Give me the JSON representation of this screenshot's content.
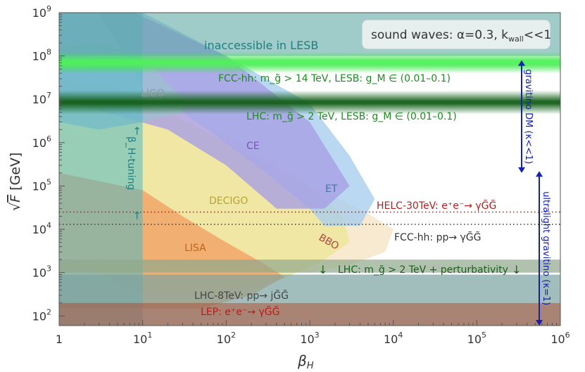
{
  "chart_data": {
    "type": "area",
    "xlabel": "β_H",
    "ylabel": "√F [GeV]",
    "x_scale": "log",
    "y_scale": "log",
    "xlim": [
      1,
      1000000
    ],
    "ylim": [
      60,
      1000000000
    ],
    "x_ticks": [
      {
        "value": 1,
        "label": "1"
      },
      {
        "value": 10,
        "base": "10",
        "exp": "1"
      },
      {
        "value": 100,
        "base": "10",
        "exp": "2"
      },
      {
        "value": 1000,
        "base": "10",
        "exp": "3"
      },
      {
        "value": 10000,
        "base": "10",
        "exp": "4"
      },
      {
        "value": 100000,
        "base": "10",
        "exp": "5"
      },
      {
        "value": 1000000,
        "base": "10",
        "exp": "6"
      }
    ],
    "y_ticks": [
      {
        "value": 100,
        "base": "10",
        "exp": "2"
      },
      {
        "value": 1000,
        "base": "10",
        "exp": "3"
      },
      {
        "value": 10000,
        "base": "10",
        "exp": "4"
      },
      {
        "value": 100000,
        "base": "10",
        "exp": "5"
      },
      {
        "value": 1000000,
        "base": "10",
        "exp": "6"
      },
      {
        "value": 10000000,
        "base": "10",
        "exp": "7"
      },
      {
        "value": 100000000,
        "base": "10",
        "exp": "8"
      },
      {
        "value": 1000000000,
        "base": "10",
        "exp": "9"
      }
    ],
    "legend_box": {
      "text": "sound waves: α=0.3, k",
      "sub": "wall",
      "tail": "<<1",
      "placement": "top-right"
    },
    "regions": [
      {
        "name": "inaccessible-in-lesb",
        "label": "inaccessible in LESB",
        "color": "#5fa9a5",
        "y_min": 100000000,
        "y_max": 1000000000
      },
      {
        "name": "lhc-perturbativity",
        "label": "LHC: m_g̃ > 2 TeV + perturbativity",
        "color": "#8fa88c",
        "y_min": 1000,
        "y_max": 2000
      },
      {
        "name": "lhc-8tev",
        "label": "LHC-8TeV: pp→ jG̃G̃",
        "color": "#7aa39f",
        "y_min": 200,
        "y_max": 900
      },
      {
        "name": "lep",
        "label": "LEP: e⁺e⁻→ γG̃G̃",
        "color": "#9a6d5c",
        "y_min": 60,
        "y_max": 200
      },
      {
        "name": "beta-h-tuning",
        "label": "β_H-tuning",
        "color": "#4fb8c4",
        "x_min": 1,
        "x_max": 10
      }
    ],
    "gw_sensitivity": [
      {
        "name": "LISA",
        "label": "LISA",
        "color": "#f2a165",
        "label_color": "#c0651c"
      },
      {
        "name": "DECIGO",
        "label": "DECIGO",
        "color": "#efe596",
        "label_color": "#b5a43a"
      },
      {
        "name": "BBO",
        "label": "BBO",
        "color": "#f3d9aa",
        "label_color": "#a9473d"
      },
      {
        "name": "CE",
        "label": "CE",
        "color": "#a69ee6",
        "label_color": "#7a55b6"
      },
      {
        "name": "ET",
        "label": "ET",
        "color": "#a6cdee",
        "label_color": "#3a78a8"
      },
      {
        "name": "LIGO",
        "label": "LIGO",
        "color": "#9dbfd0",
        "label_color": "#8a9aa0"
      }
    ],
    "bands": [
      {
        "name": "fcc-hh-gluino",
        "label": "FCC-hh: m_g̃ > 14 TeV, LESB: g_M ∈ (0.01–0.1)",
        "y": 70000000,
        "color": "#33e040",
        "label_color": "#1f8a22"
      },
      {
        "name": "lhc-gluino",
        "label": "LHC: m_g̃ > 2 TeV, LESB: g_M ∈ (0.01–0.1)",
        "y": 8500000,
        "color": "#176e1e",
        "label_color": "#1f8a22"
      }
    ],
    "lines": [
      {
        "name": "helc-30tev",
        "label": "HELC-30TeV: e⁺e⁻→ γG̃G̃",
        "y": 25000,
        "style": "dotted",
        "color": "#a52a2a"
      },
      {
        "name": "fcc-hh-photon",
        "label": "FCC-hh: pp→ γG̃G̃",
        "y": 13000,
        "style": "dotted",
        "color": "#444444"
      }
    ],
    "arrows": [
      {
        "name": "gravitino-dm",
        "label": "gravitino DM (κ<<1)",
        "y_min": 200000,
        "y_max": 80000000,
        "color": "#1420b0"
      },
      {
        "name": "ultralight-gravitino",
        "label": "ultralight gravitino (κ=1)",
        "y_min": 60,
        "y_max": 220000,
        "color": "#1420b0"
      }
    ]
  }
}
